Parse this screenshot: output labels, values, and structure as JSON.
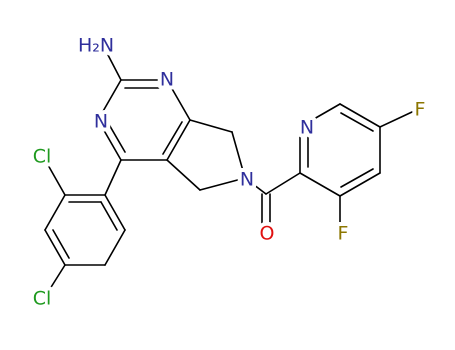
{
  "atoms": {
    "amine": "H₂N",
    "pyrimidine_n1": "N",
    "pyrimidine_n3": "N",
    "pyrrolidine_n": "N",
    "pyridine_n": "N",
    "carbonyl_o": "O",
    "fluoro_3": "F",
    "fluoro_5": "F",
    "chloro_2": "Cl",
    "chloro_4": "Cl"
  }
}
